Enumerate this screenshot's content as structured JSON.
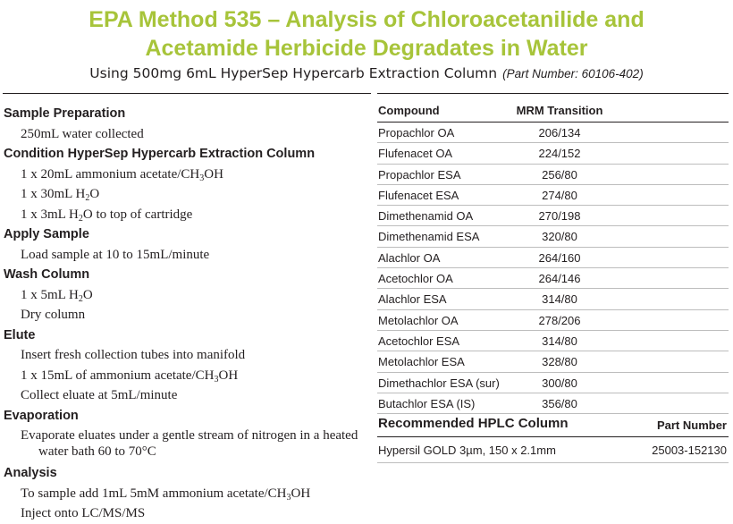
{
  "title": {
    "line1": "EPA Method 535 – Analysis of Chloroacetanilide and",
    "line2": "Acetamide Herbicide Degradates in Water"
  },
  "subtitle": {
    "text": "Using 500mg 6mL HyperSep Hypercarb Extraction Column",
    "part_number": "(Part Number: 60106-402)"
  },
  "procedure": {
    "sample_prep": {
      "heading": "Sample Preparation",
      "step1": "250mL water collected"
    },
    "condition": {
      "heading": "Condition HyperSep Hypercarb Extraction Column",
      "step1_pre": "1 x 20mL ammonium acetate/CH",
      "step1_sub": "3",
      "step1_post": "OH",
      "step2_pre": "1 x 30mL H",
      "step2_sub": "2",
      "step2_post": "O",
      "step3_pre": "1 x 3mL H",
      "step3_sub": "2",
      "step3_post": "O to top of cartridge"
    },
    "apply": {
      "heading": "Apply Sample",
      "step1": "Load sample at 10 to 15mL/minute"
    },
    "wash": {
      "heading": "Wash Column",
      "step1_pre": "1 x 5mL H",
      "step1_sub": "2",
      "step1_post": "O",
      "step2": "Dry column"
    },
    "elute": {
      "heading": "Elute",
      "step1": "Insert fresh collection tubes into manifold",
      "step2_pre": "1 x 15mL of ammonium acetate/CH",
      "step2_sub": "3",
      "step2_post": "OH",
      "step3": "Collect eluate at 5mL/minute"
    },
    "evaporation": {
      "heading": "Evaporation",
      "step1": "Evaporate eluates under a gentle stream of nitrogen in a heated water bath 60 to 70°C"
    },
    "analysis": {
      "heading": "Analysis",
      "step1_pre": "To sample add 1mL 5mM ammonium acetate/CH",
      "step1_sub": "3",
      "step1_post": "OH",
      "step2": "Inject onto LC/MS/MS"
    }
  },
  "compound_table": {
    "col_compound": "Compound",
    "col_mrm": "MRM Transition",
    "rows": [
      {
        "compound": "Propachlor OA",
        "mrm": "206/134"
      },
      {
        "compound": "Flufenacet OA",
        "mrm": "224/152"
      },
      {
        "compound": "Propachlor ESA",
        "mrm": "256/80"
      },
      {
        "compound": "Flufenacet ESA",
        "mrm": "274/80"
      },
      {
        "compound": "Dimethenamid OA",
        "mrm": "270/198"
      },
      {
        "compound": "Dimethenamid ESA",
        "mrm": "320/80"
      },
      {
        "compound": "Alachlor OA",
        "mrm": "264/160"
      },
      {
        "compound": "Acetochlor OA",
        "mrm": "264/146"
      },
      {
        "compound": "Alachlor ESA",
        "mrm": "314/80"
      },
      {
        "compound": "Metolachlor OA",
        "mrm": "278/206"
      },
      {
        "compound": "Acetochlor ESA",
        "mrm": "314/80"
      },
      {
        "compound": "Metolachlor ESA",
        "mrm": "328/80"
      },
      {
        "compound": "Dimethachlor ESA (sur)",
        "mrm": "300/80"
      },
      {
        "compound": "Butachlor ESA (IS)",
        "mrm": "356/80"
      }
    ]
  },
  "hplc": {
    "heading": "Recommended HPLC Column",
    "part_label": "Part Number",
    "column": "Hypersil GOLD 3µm, 150 x 2.1mm",
    "part_number": "25003-152130"
  }
}
